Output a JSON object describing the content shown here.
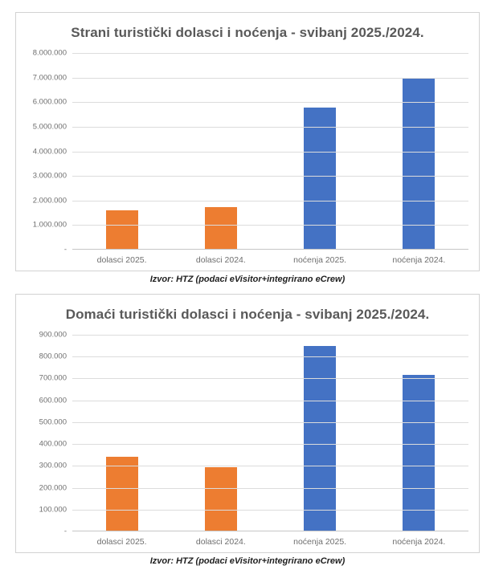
{
  "colors": {
    "orange": "#ED7D31",
    "blue": "#4472C4",
    "title_gray": "#595959",
    "axis_gray": "#6e6e6e",
    "gridline": "#dcdcdc",
    "frame_border": "#d2d2d2"
  },
  "chart_data": [
    {
      "type": "bar",
      "title": "Strani turistički dolasci i noćenja - svibanj 2025./2024.",
      "source": "Izvor: HTZ (podaci eVisitor+integrirano eCrew)",
      "xlabel": "",
      "ylabel": "",
      "ylim": [
        0,
        8000000
      ],
      "grid": true,
      "legend": "none",
      "y_tick_labels": [
        "8.000.000",
        "7.000.000",
        "6.000.000",
        "5.000.000",
        "4.000.000",
        "3.000.000",
        "2.000.000",
        "1.000.000",
        "-"
      ],
      "categories": [
        "dolasci 2025.",
        "dolasci 2024.",
        "noćenja 2025.",
        "noćenja 2024."
      ],
      "values": [
        1590000,
        1720000,
        5770000,
        6960000
      ],
      "bar_colors": [
        "#ED7D31",
        "#ED7D31",
        "#4472C4",
        "#4472C4"
      ]
    },
    {
      "type": "bar",
      "title": "Domaći turistički dolasci i noćenja - svibanj 2025./2024.",
      "source": "Izvor: HTZ (podaci eVisitor+integrirano eCrew)",
      "xlabel": "",
      "ylabel": "",
      "ylim": [
        0,
        900000
      ],
      "grid": true,
      "legend": "none",
      "y_tick_labels": [
        "900.000",
        "800.000",
        "700.000",
        "600.000",
        "500.000",
        "400.000",
        "300.000",
        "200.000",
        "100.000",
        "-"
      ],
      "categories": [
        "dolasci 2025.",
        "dolasci 2024.",
        "noćenja 2025.",
        "noćenja 2024."
      ],
      "values": [
        340000,
        293000,
        850000,
        718000
      ],
      "bar_colors": [
        "#ED7D31",
        "#ED7D31",
        "#4472C4",
        "#4472C4"
      ]
    }
  ]
}
